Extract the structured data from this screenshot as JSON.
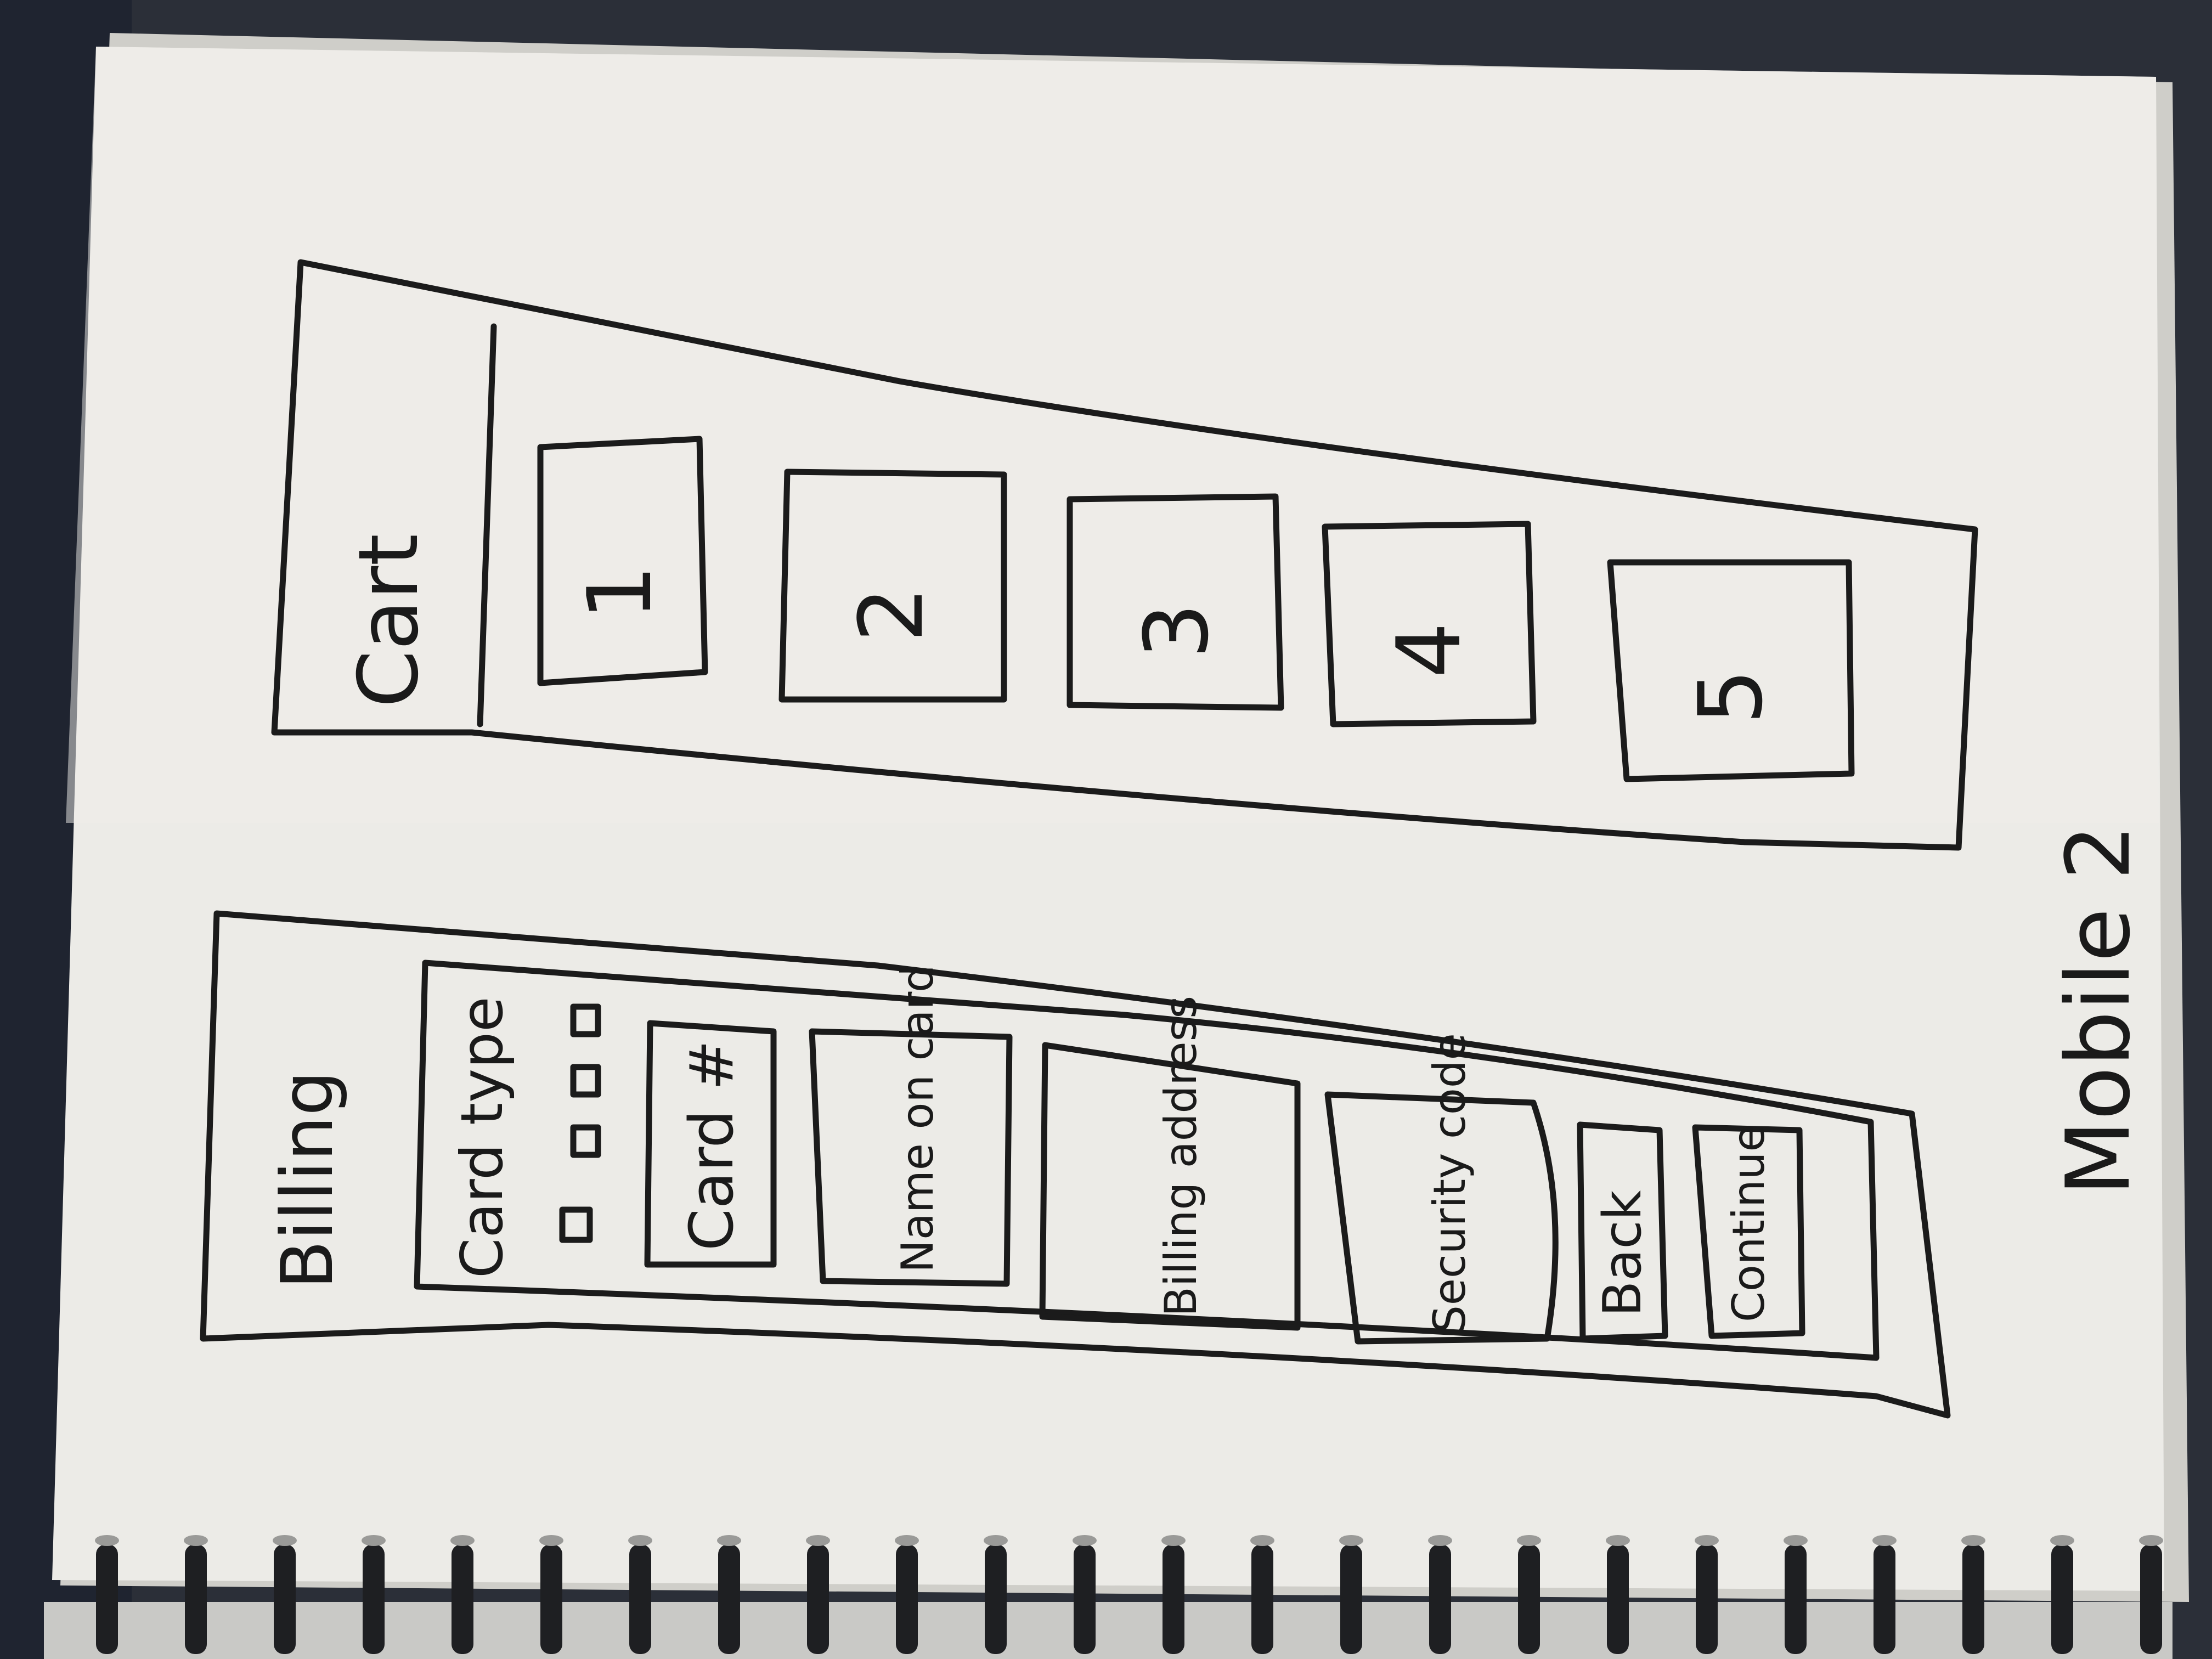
{
  "colors": {
    "ink": "#1b1b1b",
    "paper": "#ecebe7",
    "paper_shadow": "#d9d8d3",
    "background": "#2a2d33",
    "binding": "#1e1f22",
    "binding_bar": "#bfbfbf"
  },
  "sketch_top": {
    "header_label": "Cart",
    "items": [
      "1",
      "2",
      "3",
      "4",
      "5"
    ]
  },
  "sketch_bottom": {
    "header_label": "Billing",
    "card_type_label": "Card type",
    "fields": [
      "Card #",
      "Name on card",
      "Billing address",
      "Security code"
    ],
    "buttons": [
      "Back",
      "Continue"
    ]
  },
  "side_note": "Mobile 2"
}
